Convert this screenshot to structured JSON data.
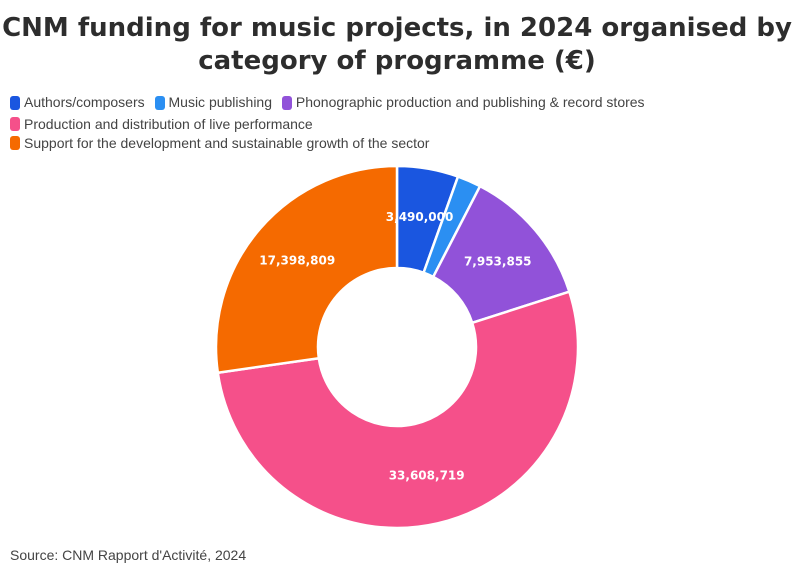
{
  "chart_data": {
    "type": "pie",
    "variant": "donut",
    "title": "CNM funding for music projects, in 2024 organised by category of programme (€)",
    "categories": [
      "Authors/composers",
      "Music publishing",
      "Phonographic production and publishing & record stores",
      "Production and distribution of live performance",
      "Support for the development and sustainable growth of the sector"
    ],
    "values": [
      3490000,
      1350000,
      7953855,
      33608719,
      17398809
    ],
    "value_labels": [
      "3,490,000",
      "",
      "7,953,855",
      "33,608,719",
      "17,398,809"
    ],
    "colors": [
      "#1a56e0",
      "#2b8ff2",
      "#9152d9",
      "#f5508a",
      "#f56a00"
    ],
    "legend_position": "top-left",
    "source": "Source: CNM Rapport d'Activité, 2024"
  }
}
